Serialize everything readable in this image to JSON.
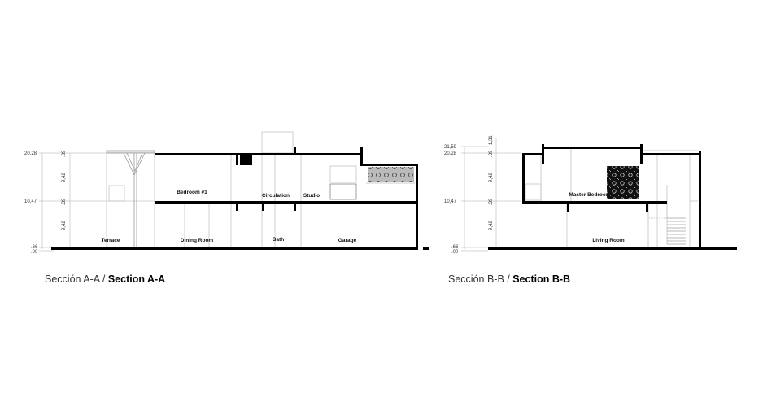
{
  "section_a": {
    "caption_es": "Sección A-A / ",
    "caption_en": "Section A-A",
    "levels": [
      "20,28",
      "10,47",
      ".66",
      ".00"
    ],
    "heights": [
      ".39",
      "9,42",
      ".39",
      "9,42"
    ],
    "rooms": [
      "Terrace",
      "Dining Room",
      "Bath",
      "Garage",
      "Bedroom #1",
      "Circulation",
      "Studio"
    ]
  },
  "section_b": {
    "caption_es": "Sección B-B / ",
    "caption_en": "Section B-B",
    "levels": [
      "21,59",
      "20,28",
      "10,47",
      ".66",
      ".00"
    ],
    "heights": [
      "1,31",
      ".39",
      "9,42",
      ".39",
      "9,42"
    ],
    "rooms": [
      "Master Bedroom",
      "Living Room"
    ]
  }
}
